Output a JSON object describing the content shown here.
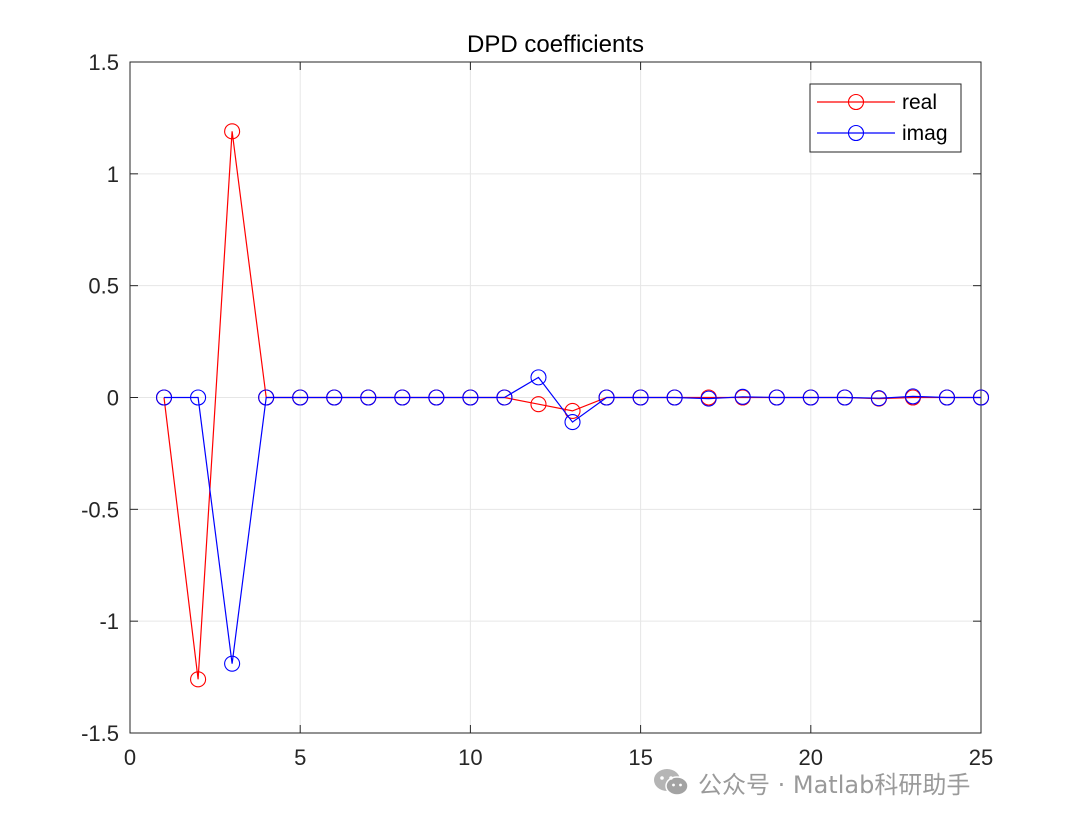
{
  "chart_data": {
    "type": "line",
    "title": "DPD coefficients",
    "xlabel": "",
    "ylabel": "",
    "xlim": [
      0,
      25
    ],
    "ylim": [
      -1.5,
      1.5
    ],
    "xticks": [
      0,
      5,
      10,
      15,
      20,
      25
    ],
    "yticks": [
      -1.5,
      -1,
      -0.5,
      0,
      0.5,
      1,
      1.5
    ],
    "xtick_labels": [
      "0",
      "5",
      "10",
      "15",
      "20",
      "25"
    ],
    "ytick_labels": [
      "-1.5",
      "-1",
      "-0.5",
      "0",
      "0.5",
      "1",
      "1.5"
    ],
    "grid": true,
    "legend_position": "top-right",
    "marker": "circle",
    "series": [
      {
        "name": "real",
        "color": "#ff0000",
        "x": [
          1,
          2,
          3,
          4,
          5,
          6,
          7,
          8,
          9,
          10,
          11,
          12,
          13,
          14,
          15,
          16,
          17,
          18,
          19,
          20,
          21,
          22,
          23,
          24,
          25
        ],
        "y": [
          0,
          -1.26,
          1.19,
          0,
          0,
          0,
          0,
          0,
          0,
          0,
          0,
          -0.03,
          -0.06,
          0,
          0,
          0,
          0,
          0,
          0,
          0,
          0,
          -0.005,
          0,
          0,
          0
        ]
      },
      {
        "name": "imag",
        "color": "#0000ff",
        "x": [
          1,
          2,
          3,
          4,
          5,
          6,
          7,
          8,
          9,
          10,
          11,
          12,
          13,
          14,
          15,
          16,
          17,
          18,
          19,
          20,
          21,
          22,
          23,
          24,
          25
        ],
        "y": [
          0,
          0,
          -1.19,
          0,
          0,
          0,
          0,
          0,
          0,
          0,
          0,
          0.09,
          -0.11,
          0,
          0,
          0,
          -0.005,
          0.003,
          0,
          0,
          0,
          -0.003,
          0.005,
          0,
          0
        ]
      }
    ]
  },
  "watermark": {
    "text": "公众号 · Matlab科研助手",
    "icon": "wechat-icon",
    "color": "#9a9a9a"
  }
}
